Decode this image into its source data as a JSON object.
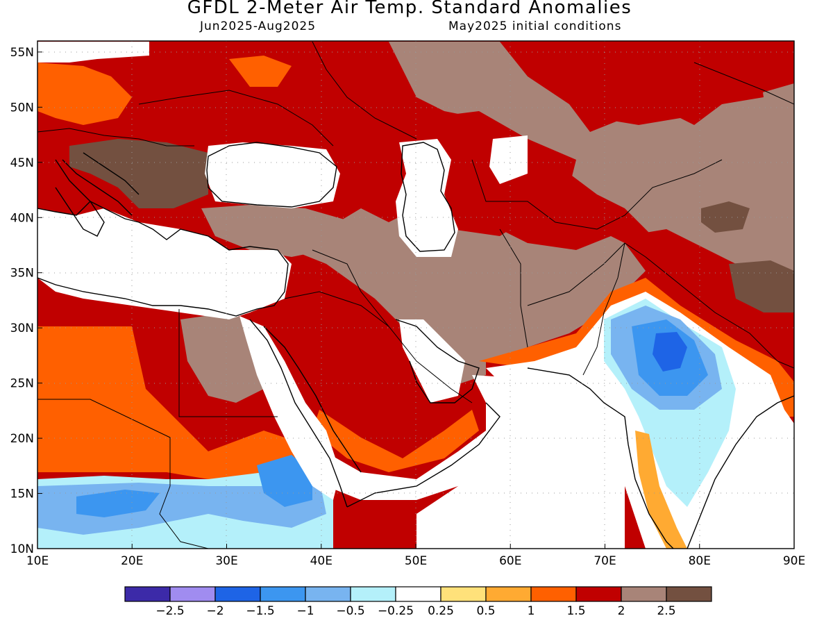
{
  "header": {
    "title": "GFDL 2-Meter Air Temp. Standard Anomalies",
    "period": "Jun2025-Aug2025",
    "init": "May2025 initial conditions"
  },
  "map": {
    "lon_range": [
      10,
      90
    ],
    "lat_range": [
      10,
      56
    ],
    "lon_ticks": [
      "10E",
      "20E",
      "30E",
      "40E",
      "50E",
      "60E",
      "70E",
      "80E",
      "90E"
    ],
    "lat_ticks": [
      "10N",
      "15N",
      "20N",
      "25N",
      "30N",
      "35N",
      "40N",
      "45N",
      "50N",
      "55N"
    ]
  },
  "colorbar": {
    "colors": [
      "#3c2aa8",
      "#a08cf0",
      "#1e64e6",
      "#3c96f0",
      "#78b4f0",
      "#b4f0fa",
      "#ffffff",
      "#ffe17a",
      "#ffaa32",
      "#ff6000",
      "#c00000",
      "#a88478",
      "#735040"
    ],
    "labels": [
      "-2.5",
      "-2",
      "-1.5",
      "-1",
      "-0.5",
      "-0.25",
      "0.25",
      "0.5",
      "1",
      "1.5",
      "2",
      "2.5"
    ]
  },
  "palette": {
    "strong_warm": "#c00000",
    "very_warm": "#a88478",
    "extreme_warm": "#735040",
    "warm_orange": "#ff6000",
    "cool_blue": "#78b4f0",
    "cold_blue": "#3c96f0",
    "colder_blue": "#1e64e6"
  }
}
